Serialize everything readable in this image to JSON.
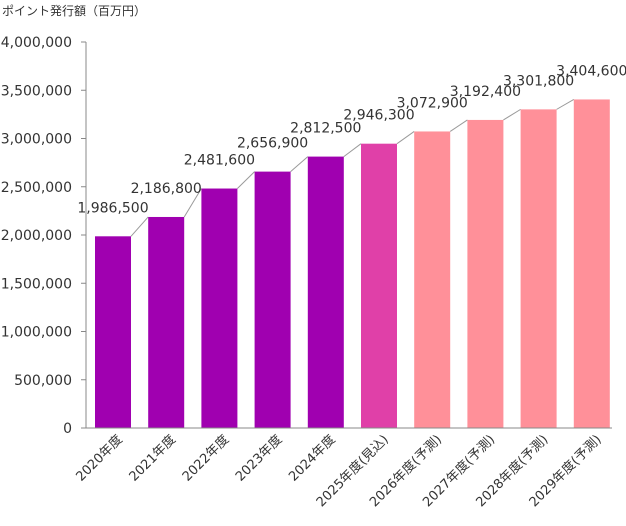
{
  "chart_data": {
    "type": "bar",
    "ylabel": "ポイント発行額（百万円）",
    "categories": [
      "2020年度",
      "2021年度",
      "2022年度",
      "2023年度",
      "2024年度",
      "2025年度(見込)",
      "2026年度(予測)",
      "2027年度(予測)",
      "2028年度(予測)",
      "2029年度(予測)"
    ],
    "values": [
      1986500,
      2186800,
      2481600,
      2656900,
      2812500,
      2946300,
      3072900,
      3192400,
      3301800,
      3404600
    ],
    "value_labels": [
      "1,986,500",
      "2,186,800",
      "2,481,600",
      "2,656,900",
      "2,812,500",
      "2,946,300",
      "3,072,900",
      "3,192,400",
      "3,301,800",
      "3,404,600"
    ],
    "kinds": [
      "actual",
      "actual",
      "actual",
      "actual",
      "actual",
      "estimate",
      "forecast",
      "forecast",
      "forecast",
      "forecast"
    ],
    "ylim": [
      0,
      4000000
    ],
    "yticks": [
      0,
      500000,
      1000000,
      1500000,
      2000000,
      2500000,
      3000000,
      3500000,
      4000000
    ],
    "ytick_labels": [
      "0",
      "500,000",
      "1,000,000",
      "1,500,000",
      "2,000,000",
      "2,500,000",
      "3,000,000",
      "3,500,000",
      "4,000,000"
    ],
    "grid": false,
    "colors": {
      "actual": "#a000b0",
      "estimate": "#e040a8",
      "forecast": "#ff9099",
      "connector": "#9a9a9a",
      "axis": "#888888"
    }
  }
}
